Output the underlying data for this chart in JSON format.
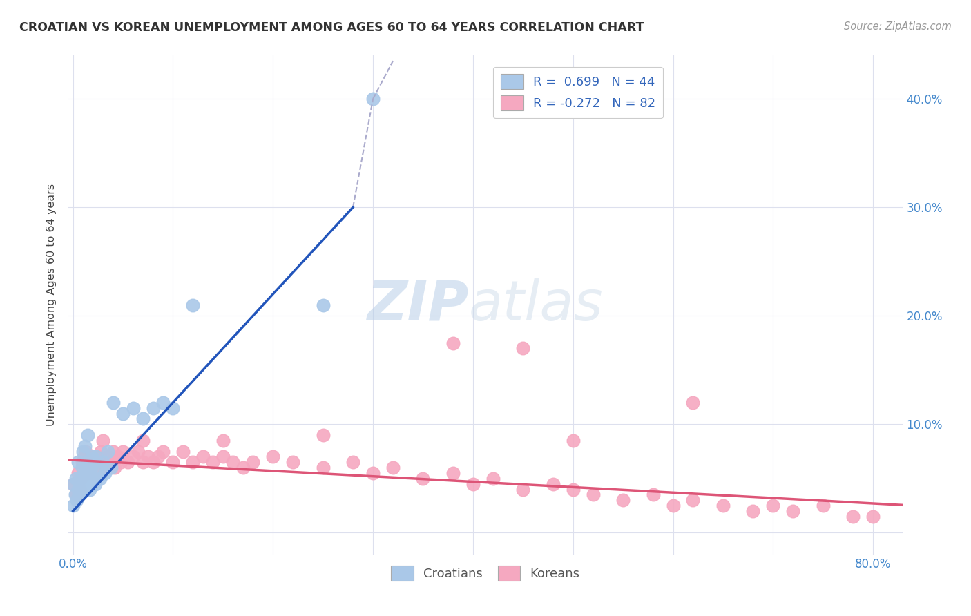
{
  "title": "CROATIAN VS KOREAN UNEMPLOYMENT AMONG AGES 60 TO 64 YEARS CORRELATION CHART",
  "source": "Source: ZipAtlas.com",
  "ylabel": "Unemployment Among Ages 60 to 64 years",
  "xlim": [
    -0.005,
    0.83
  ],
  "ylim": [
    -0.02,
    0.44
  ],
  "yticks": [
    0.0,
    0.1,
    0.2,
    0.3,
    0.4
  ],
  "xtick_positions": [
    0.0,
    0.1,
    0.2,
    0.3,
    0.4,
    0.5,
    0.6,
    0.7,
    0.8
  ],
  "background_color": "#ffffff",
  "grid_color": "#dde0ee",
  "croatian_color": "#aac8e8",
  "korean_color": "#f5a8c0",
  "croatian_line_color": "#2255bb",
  "korean_line_color": "#dd5577",
  "dashed_color": "#aaaacc",
  "legend_R_croatian": "0.699",
  "legend_N_croatian": "44",
  "legend_R_korean": "-0.272",
  "legend_N_korean": "82",
  "cro_x": [
    0.0,
    0.0,
    0.002,
    0.003,
    0.004,
    0.005,
    0.005,
    0.006,
    0.007,
    0.008,
    0.009,
    0.01,
    0.01,
    0.011,
    0.012,
    0.012,
    0.013,
    0.014,
    0.015,
    0.015,
    0.016,
    0.017,
    0.018,
    0.019,
    0.02,
    0.021,
    0.022,
    0.023,
    0.025,
    0.027,
    0.03,
    0.032,
    0.035,
    0.038,
    0.04,
    0.05,
    0.06,
    0.07,
    0.08,
    0.09,
    0.1,
    0.12,
    0.25,
    0.3
  ],
  "cro_y": [
    0.025,
    0.045,
    0.035,
    0.05,
    0.03,
    0.04,
    0.065,
    0.035,
    0.05,
    0.04,
    0.06,
    0.045,
    0.075,
    0.055,
    0.04,
    0.08,
    0.05,
    0.065,
    0.045,
    0.09,
    0.055,
    0.04,
    0.06,
    0.07,
    0.05,
    0.065,
    0.045,
    0.07,
    0.06,
    0.05,
    0.065,
    0.055,
    0.075,
    0.06,
    0.12,
    0.11,
    0.115,
    0.105,
    0.115,
    0.12,
    0.115,
    0.21,
    0.21,
    0.4
  ],
  "kor_x": [
    0.0,
    0.003,
    0.005,
    0.007,
    0.008,
    0.009,
    0.01,
    0.011,
    0.012,
    0.013,
    0.014,
    0.015,
    0.016,
    0.017,
    0.018,
    0.019,
    0.02,
    0.021,
    0.022,
    0.023,
    0.025,
    0.026,
    0.028,
    0.03,
    0.032,
    0.035,
    0.038,
    0.04,
    0.042,
    0.045,
    0.048,
    0.05,
    0.055,
    0.06,
    0.065,
    0.07,
    0.075,
    0.08,
    0.085,
    0.09,
    0.1,
    0.11,
    0.12,
    0.13,
    0.14,
    0.15,
    0.16,
    0.17,
    0.18,
    0.2,
    0.22,
    0.25,
    0.28,
    0.3,
    0.32,
    0.35,
    0.38,
    0.4,
    0.42,
    0.45,
    0.48,
    0.5,
    0.52,
    0.55,
    0.58,
    0.6,
    0.62,
    0.65,
    0.68,
    0.7,
    0.72,
    0.75,
    0.78,
    0.8,
    0.03,
    0.07,
    0.15,
    0.25,
    0.45,
    0.62,
    0.5,
    0.38
  ],
  "kor_y": [
    0.045,
    0.035,
    0.055,
    0.04,
    0.05,
    0.065,
    0.055,
    0.07,
    0.06,
    0.075,
    0.065,
    0.055,
    0.07,
    0.06,
    0.065,
    0.055,
    0.07,
    0.06,
    0.065,
    0.055,
    0.07,
    0.065,
    0.075,
    0.06,
    0.065,
    0.07,
    0.065,
    0.075,
    0.06,
    0.07,
    0.065,
    0.075,
    0.065,
    0.07,
    0.075,
    0.065,
    0.07,
    0.065,
    0.07,
    0.075,
    0.065,
    0.075,
    0.065,
    0.07,
    0.065,
    0.07,
    0.065,
    0.06,
    0.065,
    0.07,
    0.065,
    0.06,
    0.065,
    0.055,
    0.06,
    0.05,
    0.055,
    0.045,
    0.05,
    0.04,
    0.045,
    0.04,
    0.035,
    0.03,
    0.035,
    0.025,
    0.03,
    0.025,
    0.02,
    0.025,
    0.02,
    0.025,
    0.015,
    0.015,
    0.085,
    0.085,
    0.085,
    0.09,
    0.17,
    0.12,
    0.085,
    0.175
  ]
}
